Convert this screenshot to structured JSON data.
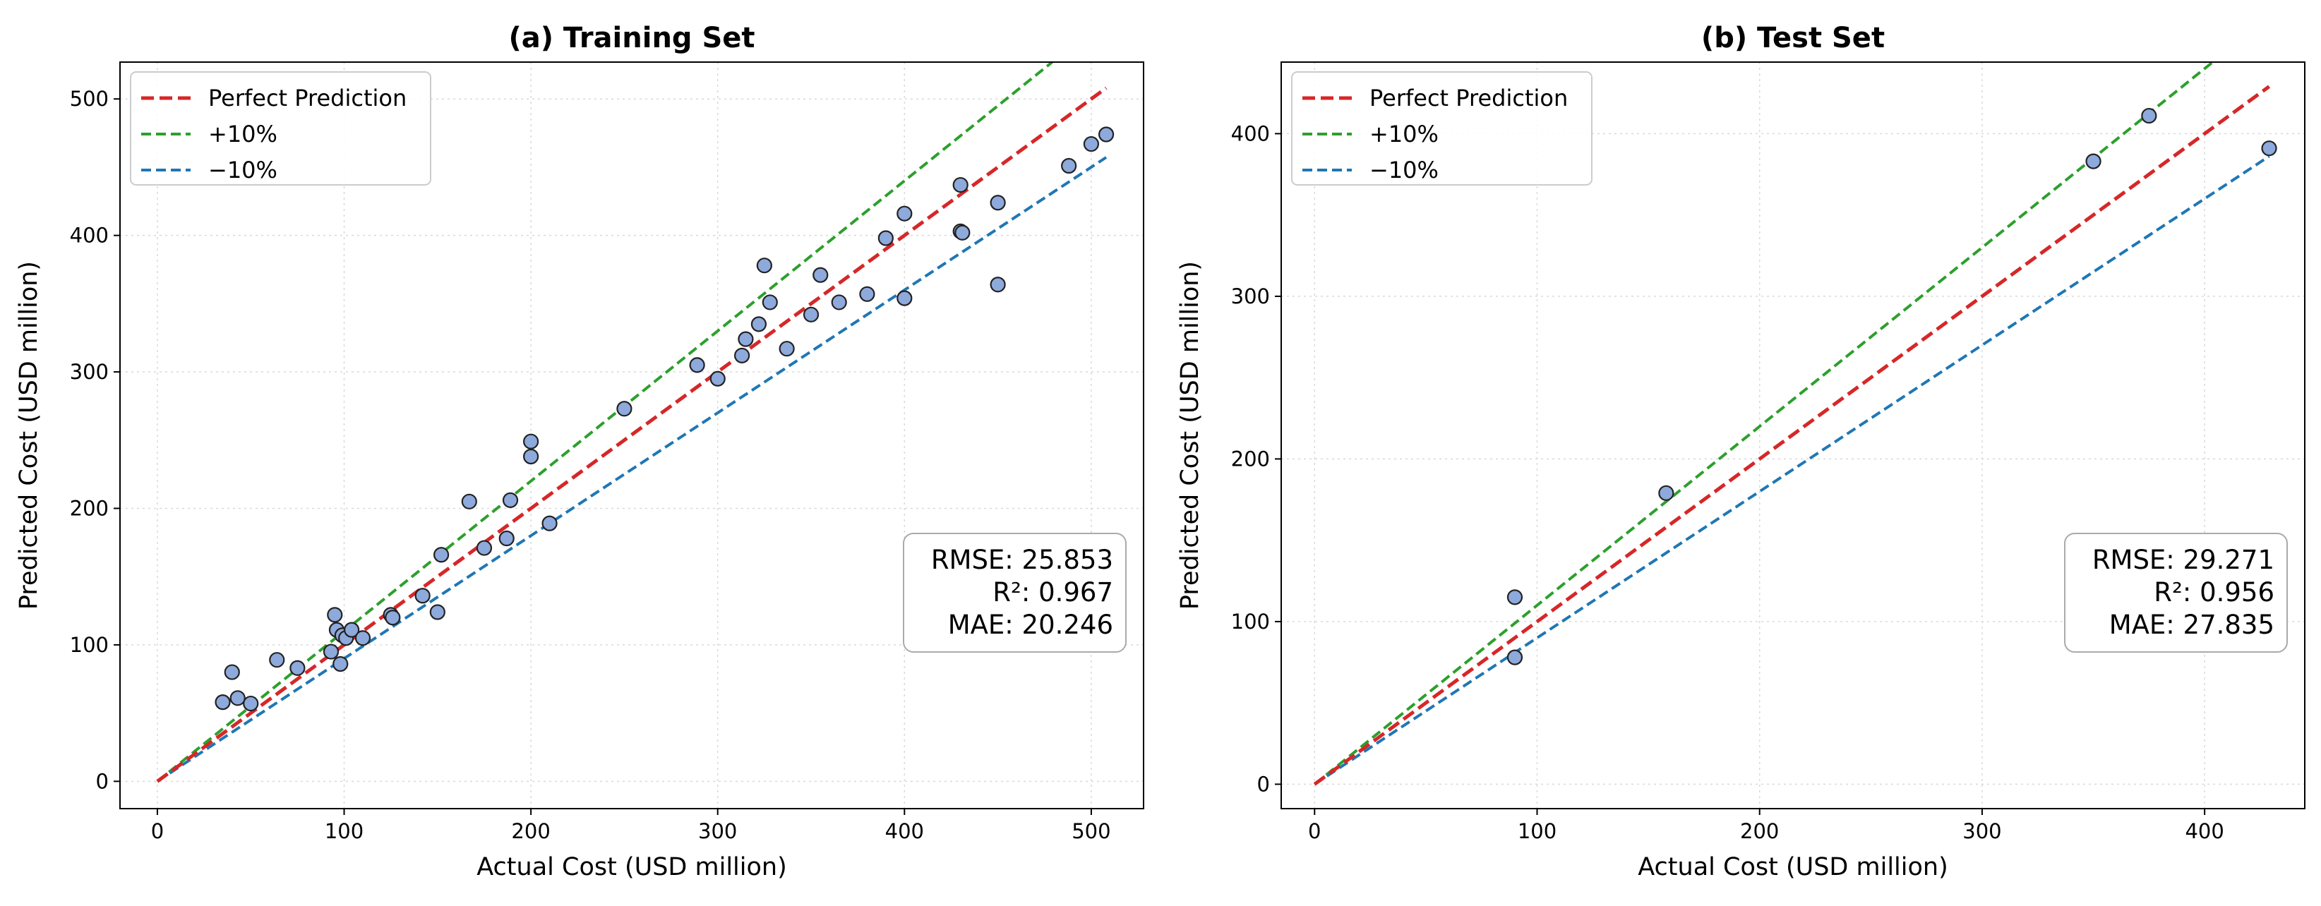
{
  "chart_data": [
    {
      "type": "scatter",
      "title": "(a) Training Set",
      "xlabel": "Actual Cost (USD million)",
      "ylabel": "Predicted Cost (USD million)",
      "xlim": [
        -20,
        528
      ],
      "ylim": [
        -20,
        527
      ],
      "xticks": [
        "0",
        "100",
        "200",
        "300",
        "400",
        "500"
      ],
      "yticks": [
        "0",
        "100",
        "200",
        "300",
        "400",
        "500"
      ],
      "grid": true,
      "legend_position": "top-left",
      "lines": [
        {
          "name": "Perfect Prediction",
          "color": "#d62728",
          "factor": 1.0,
          "x_end": 508
        },
        {
          "name": "+10%",
          "color": "#2ca02c",
          "factor": 1.1,
          "x_end": 508
        },
        {
          "name": "−10%",
          "color": "#1f77b4",
          "factor": 0.9,
          "x_end": 508
        }
      ],
      "points": [
        [
          35,
          58
        ],
        [
          40,
          80
        ],
        [
          43,
          61
        ],
        [
          50,
          57
        ],
        [
          64,
          89
        ],
        [
          75,
          83
        ],
        [
          93,
          95
        ],
        [
          95,
          122
        ],
        [
          96,
          111
        ],
        [
          98,
          86
        ],
        [
          99,
          107
        ],
        [
          101,
          105
        ],
        [
          104,
          111
        ],
        [
          110,
          105
        ],
        [
          125,
          122
        ],
        [
          126,
          120
        ],
        [
          142,
          136
        ],
        [
          150,
          124
        ],
        [
          152,
          166
        ],
        [
          167,
          205
        ],
        [
          175,
          171
        ],
        [
          187,
          178
        ],
        [
          189,
          206
        ],
        [
          200,
          249
        ],
        [
          200,
          238
        ],
        [
          210,
          189
        ],
        [
          250,
          273
        ],
        [
          289,
          305
        ],
        [
          300,
          295
        ],
        [
          313,
          312
        ],
        [
          315,
          324
        ],
        [
          322,
          335
        ],
        [
          325,
          378
        ],
        [
          328,
          351
        ],
        [
          337,
          317
        ],
        [
          350,
          342
        ],
        [
          355,
          371
        ],
        [
          365,
          351
        ],
        [
          380,
          357
        ],
        [
          390,
          398
        ],
        [
          400,
          416
        ],
        [
          400,
          354
        ],
        [
          430,
          437
        ],
        [
          430,
          403
        ],
        [
          431,
          402
        ],
        [
          450,
          424
        ],
        [
          450,
          364
        ],
        [
          488,
          451
        ],
        [
          500,
          467
        ],
        [
          508,
          474
        ]
      ],
      "stats": {
        "rmse": "RMSE: 25.853",
        "r2": "R²: 0.967",
        "mae": "MAE: 20.246"
      }
    },
    {
      "type": "scatter",
      "title": "(b) Test Set",
      "xlabel": "Actual Cost (USD million)",
      "ylabel": "Predicted Cost (USD million)",
      "xlim": [
        -15,
        445
      ],
      "ylim": [
        -15,
        444
      ],
      "xticks": [
        "0",
        "100",
        "200",
        "300",
        "400"
      ],
      "yticks": [
        "0",
        "100",
        "200",
        "300",
        "400"
      ],
      "grid": true,
      "legend_position": "top-left",
      "lines": [
        {
          "name": "Perfect Prediction",
          "color": "#d62728",
          "factor": 1.0,
          "x_end": 429
        },
        {
          "name": "+10%",
          "color": "#2ca02c",
          "factor": 1.1,
          "x_end": 429
        },
        {
          "name": "−10%",
          "color": "#1f77b4",
          "factor": 0.9,
          "x_end": 429
        }
      ],
      "points": [
        [
          90,
          115
        ],
        [
          90,
          78
        ],
        [
          158,
          179
        ],
        [
          350,
          383
        ],
        [
          375,
          411
        ],
        [
          429,
          391
        ]
      ],
      "stats": {
        "rmse": "RMSE: 29.271",
        "r2": "R²: 0.956",
        "mae": "MAE: 27.835"
      }
    }
  ]
}
